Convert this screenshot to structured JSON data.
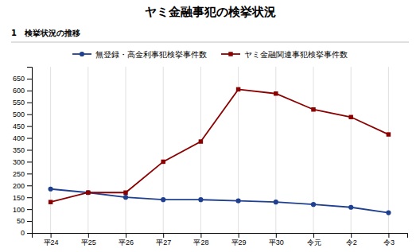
{
  "chart_data": {
    "type": "line",
    "title": "ヤミ金融事犯の検挙状況",
    "subtitle": "1　検挙状況の推移",
    "categories": [
      "平24",
      "平25",
      "平26",
      "平27",
      "平28",
      "平29",
      "平30",
      "令元",
      "令2",
      "令3"
    ],
    "series": [
      {
        "name": "無登録・高金利事犯検挙事件数",
        "color": "#1f3f8f",
        "marker": "circle",
        "values": [
          185,
          170,
          150,
          140,
          140,
          135,
          130,
          120,
          108,
          85
        ]
      },
      {
        "name": "ヤミ金融関連事犯検挙事件数",
        "color": "#8b0000",
        "marker": "square",
        "values": [
          130,
          170,
          170,
          300,
          385,
          605,
          587,
          520,
          488,
          415
        ]
      }
    ],
    "ylim": [
      0,
      700
    ],
    "yticks": [
      0,
      50,
      100,
      150,
      200,
      250,
      300,
      350,
      400,
      450,
      500,
      550,
      600,
      650
    ],
    "grid": true,
    "legend": "top"
  }
}
